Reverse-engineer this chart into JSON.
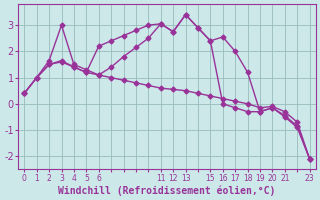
{
  "title": "Windchill (Refroidissement éolien,°C)",
  "bg_color": "#cce8e8",
  "line_color": "#993399",
  "grid_color": "#99bbbb",
  "x_labels": [
    "0",
    "1",
    "2",
    "3",
    "4",
    "5",
    "6",
    "",
    "",
    "",
    "",
    "11",
    "12",
    "13",
    "",
    "15",
    "16",
    "17",
    "18",
    "19",
    "20",
    "21",
    "",
    "23"
  ],
  "n_points": 24,
  "line1_y": [
    0.4,
    1.0,
    1.65,
    3.0,
    1.5,
    1.3,
    1.1,
    1.4,
    1.8,
    2.15,
    2.5,
    3.05,
    2.75,
    3.4,
    2.9,
    2.4,
    2.55,
    2.0,
    1.2,
    -0.3,
    -0.15,
    -0.5,
    -0.9,
    -2.1
  ],
  "line2_y": [
    0.4,
    1.0,
    1.5,
    1.65,
    1.4,
    1.2,
    2.2,
    2.4,
    2.6,
    2.8,
    3.0,
    3.05,
    2.75,
    3.4,
    2.9,
    2.4,
    0.0,
    -0.15,
    -0.3,
    -0.3,
    -0.15,
    -0.45,
    -0.85,
    -2.1
  ],
  "line3_y": [
    0.4,
    1.0,
    1.5,
    1.6,
    1.4,
    1.2,
    1.1,
    1.0,
    0.9,
    0.8,
    0.7,
    0.6,
    0.55,
    0.5,
    0.4,
    0.3,
    0.2,
    0.1,
    0.0,
    -0.15,
    -0.1,
    -0.3,
    -0.7,
    -2.1
  ],
  "ylim": [
    -2.5,
    3.8
  ],
  "yticks": [
    -2,
    -1,
    0,
    1,
    2,
    3
  ],
  "markersize": 2.5,
  "linewidth": 1.0
}
